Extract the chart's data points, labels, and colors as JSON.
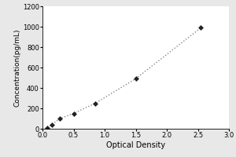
{
  "title": "",
  "xlabel": "Optical Density",
  "ylabel": "Concentration(pg/mL)",
  "x_data": [
    0.08,
    0.15,
    0.28,
    0.5,
    0.85,
    1.5,
    2.55
  ],
  "y_data": [
    10,
    40,
    100,
    150,
    250,
    490,
    990
  ],
  "xlim": [
    0,
    3
  ],
  "ylim": [
    0,
    1200
  ],
  "xticks": [
    0,
    0.5,
    1,
    1.5,
    2,
    2.5,
    3
  ],
  "yticks": [
    0,
    200,
    400,
    600,
    800,
    1000,
    1200
  ],
  "line_color": "#888888",
  "marker_color": "#222222",
  "line_style": "dotted",
  "marker_style": "D",
  "marker_size": 3,
  "line_width": 1.0,
  "bg_color": "#e8e8e8",
  "plot_bg_color": "#ffffff",
  "xlabel_fontsize": 7,
  "ylabel_fontsize": 6.5,
  "tick_fontsize": 6
}
